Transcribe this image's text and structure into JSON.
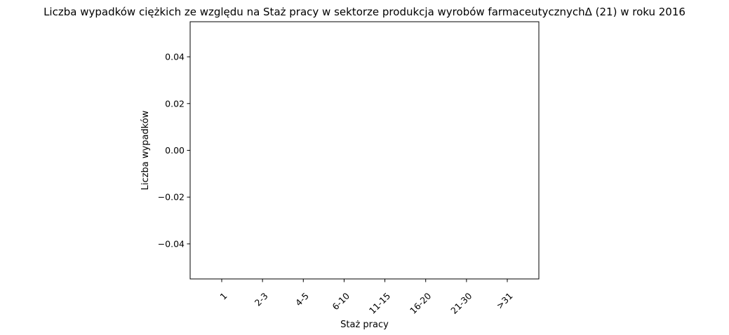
{
  "chart_data": {
    "type": "bar",
    "title": "Liczba wypadków ciężkich ze względu na Staż pracy w sektorze produkcja wyrobów farmaceutycznychΔ (21) w roku 2016",
    "xlabel": "Staż pracy",
    "ylabel": "Liczba wypadków",
    "categories": [
      "1",
      "2-3",
      "4-5",
      "6-10",
      "11-15",
      "16-20",
      "21-30",
      ">31"
    ],
    "values": [
      0,
      0,
      0,
      0,
      0,
      0,
      0,
      0
    ],
    "ylim": [
      -0.055,
      0.055
    ],
    "yticks": [
      -0.04,
      -0.02,
      0.0,
      0.02,
      0.04
    ],
    "ytick_labels": [
      "−0.04",
      "−0.02",
      "0.00",
      "0.02",
      "0.04"
    ],
    "grid": false,
    "legend": "none",
    "bar_color": "#1f77b4"
  }
}
